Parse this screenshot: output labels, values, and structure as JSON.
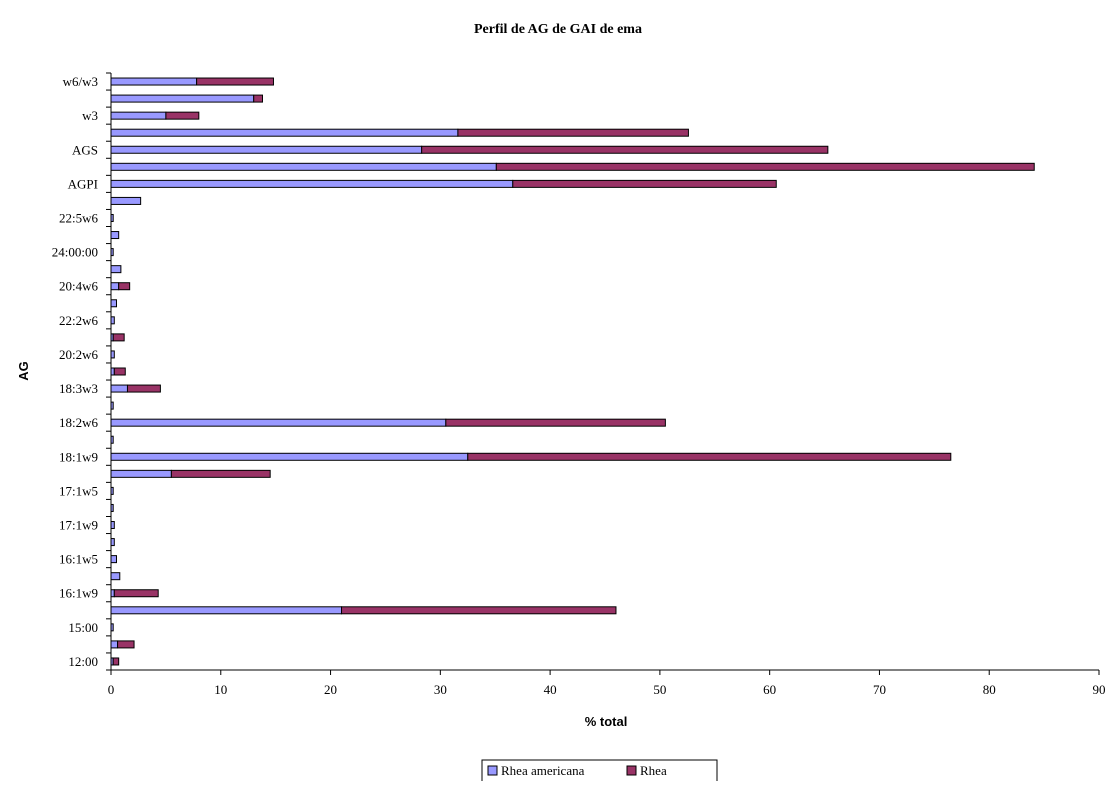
{
  "chart_data": {
    "type": "bar",
    "orientation": "horizontal",
    "stacked": true,
    "title": "Perfil de AG de GAI de ema",
    "xlabel": "% total",
    "ylabel": "AG",
    "xlim": [
      0,
      90
    ],
    "x_ticks": [
      0,
      10,
      20,
      30,
      40,
      50,
      60,
      70,
      80,
      90
    ],
    "grid": false,
    "legend_position": "bottom-center",
    "categories": [
      "12:00",
      "",
      "15:00",
      "",
      "16:1w9",
      "",
      "16:1w5",
      "",
      "17:1w9",
      "",
      "17:1w5",
      "",
      "18:1w9",
      "",
      "18:2w6",
      "",
      "18:3w3",
      "",
      "20:2w6",
      "",
      "22:2w6",
      "",
      "20:4w6",
      "",
      "24:00:00",
      "",
      "22:5w6",
      "",
      "AGPI",
      "",
      "AGS",
      "",
      "w3",
      "",
      "w6/w3"
    ],
    "series": [
      {
        "name": "Rhea americana",
        "color": "#9999ff",
        "values": [
          0.2,
          0.6,
          0.2,
          21.0,
          0.3,
          0.8,
          0.5,
          0.3,
          0.3,
          0.2,
          0.2,
          5.5,
          32.5,
          0.2,
          30.5,
          0.2,
          1.5,
          0.3,
          0.3,
          0.2,
          0.3,
          0.5,
          0.7,
          0.9,
          0.2,
          0.7,
          0.2,
          2.7,
          36.6,
          35.1,
          28.3,
          31.6,
          5.0,
          13.0,
          7.8
        ]
      },
      {
        "name": "Rhea",
        "color": "#993366",
        "values": [
          0.5,
          1.5,
          0.0,
          25.0,
          4.0,
          0.0,
          0.0,
          0.0,
          0.0,
          0.0,
          0.0,
          9.0,
          44.0,
          0.0,
          20.0,
          0.0,
          3.0,
          1.0,
          0.0,
          1.0,
          0.0,
          0.0,
          1.0,
          0.0,
          0.0,
          0.0,
          0.0,
          0.0,
          24.0,
          49.0,
          37.0,
          21.0,
          3.0,
          0.8,
          7.0
        ]
      }
    ]
  }
}
